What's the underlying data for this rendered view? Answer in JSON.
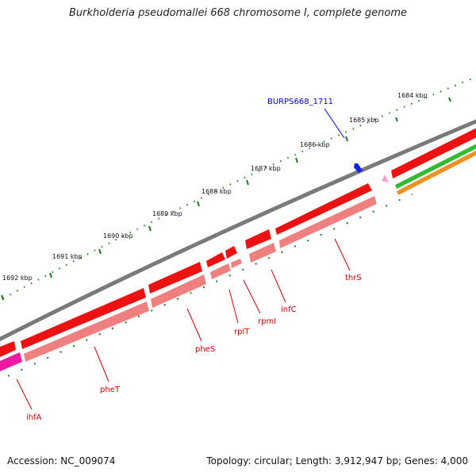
{
  "title": "Burkholderia pseudomallei 668 chromosome I, complete genome",
  "footer": {
    "accession": "Accession: NC_009074",
    "stats": "Topology: circular; Length: 3,912,947 bp; Genes: 4,000"
  },
  "colors": {
    "backbone": "#7a7a7a",
    "ruler": "#1e7d1e",
    "cds": "#ee1111",
    "gene": "#f08080",
    "trna_dark": "#ee1aa0",
    "trna_light": "#f4a0d0",
    "green_track": "#33bb33",
    "orange_track": "#f09020",
    "label_red": "#cc0000",
    "label_blue": "#0000cc",
    "arrow_blue": "#1020ee"
  },
  "scale_labels": [
    "1684 kbp",
    "1685 kbp",
    "1686 kbp",
    "1687 kbp",
    "1688 kbp",
    "1689 kbp",
    "1690 kbp",
    "1691 kbp",
    "1692 kbp"
  ],
  "gene_labels": [
    "thrS",
    "infC",
    "rpmI",
    "rplT",
    "pheS",
    "pheT",
    "ihfA"
  ],
  "locus_label": "BURPS668_1711"
}
